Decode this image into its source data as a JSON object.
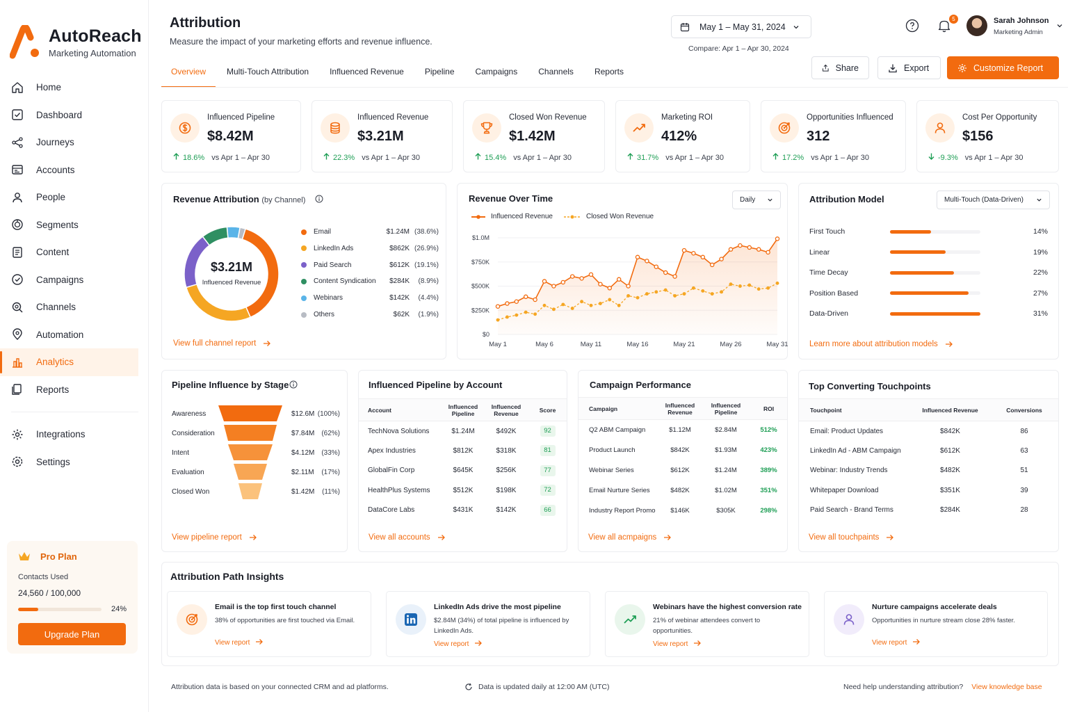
{
  "brand": {
    "name": "AutoReach",
    "tagline": "Marketing Automation",
    "accent": "#f26b0f"
  },
  "nav": [
    {
      "label": "Home",
      "icon": "home-icon"
    },
    {
      "label": "Dashboard",
      "icon": "dashboard-icon"
    },
    {
      "label": "Journeys",
      "icon": "journeys-icon"
    },
    {
      "label": "Accounts",
      "icon": "accounts-icon"
    },
    {
      "label": "People",
      "icon": "people-icon"
    },
    {
      "label": "Segments",
      "icon": "segments-icon"
    },
    {
      "label": "Content",
      "icon": "content-icon"
    },
    {
      "label": "Campaigns",
      "icon": "campaigns-icon"
    },
    {
      "label": "Channels",
      "icon": "channels-icon"
    },
    {
      "label": "Automation",
      "icon": "automation-icon"
    },
    {
      "label": "Analytics",
      "icon": "analytics-icon",
      "active": true
    },
    {
      "label": "Reports",
      "icon": "reports-icon"
    }
  ],
  "nav_bottom": [
    {
      "label": "Integrations",
      "icon": "integrations-icon"
    },
    {
      "label": "Settings",
      "icon": "settings-icon"
    }
  ],
  "plan": {
    "name": "Pro Plan",
    "contacts_label": "Contacts Used",
    "contacts": "24,560 / 100,000",
    "pct_label": "24%",
    "pct": 0.24,
    "button": "Upgrade Plan"
  },
  "header": {
    "title": "Attribution",
    "subtitle": "Measure the impact of your marketing efforts and revenue influence.",
    "date_range": "May 1 – May 31, 2024",
    "compare": "Compare: Apr 1 – Apr 30, 2024",
    "notification_count": "5",
    "user_name": "Sarah Johnson",
    "user_role": "Marketing Admin",
    "share": "Share",
    "export": "Export",
    "customize": "Customize Report"
  },
  "tabs": [
    "Overview",
    "Multi-Touch Attribution",
    "Influenced Revenue",
    "Pipeline",
    "Campaigns",
    "Channels",
    "Reports"
  ],
  "kpis": [
    {
      "label": "Influenced Pipeline",
      "value": "$8.42M",
      "delta": "18.6%",
      "direction": "up",
      "vs": "vs Apr 1 – Apr 30",
      "icon": "dollar-icon"
    },
    {
      "label": "Influenced Revenue",
      "value": "$3.21M",
      "delta": "22.3%",
      "direction": "up",
      "vs": "vs Apr 1 – Apr 30",
      "icon": "coins-icon"
    },
    {
      "label": "Closed Won Revenue",
      "value": "$1.42M",
      "delta": "15.4%",
      "direction": "up",
      "vs": "vs Apr 1 – Apr 30",
      "icon": "trophy-icon"
    },
    {
      "label": "Marketing ROI",
      "value": "412%",
      "delta": "31.7%",
      "direction": "up",
      "vs": "vs Apr 1 – Apr 30",
      "icon": "trend-icon"
    },
    {
      "label": "Opportunities Influenced",
      "value": "312",
      "delta": "17.2%",
      "direction": "up",
      "vs": "vs Apr 1 – Apr 30",
      "icon": "target-icon"
    },
    {
      "label": "Cost Per Opportunity",
      "value": "$156",
      "delta": "-9.3%",
      "direction": "down",
      "vs": "vs Apr 1 – Apr 30",
      "icon": "person-icon"
    }
  ],
  "revenue_attribution": {
    "title": "Revenue Attribution",
    "title_suffix": "(by Channel)",
    "center_value": "$3.21M",
    "center_label": "Influenced Revenue",
    "link": "View full channel report",
    "channels": [
      {
        "name": "Email",
        "value": "$1.24M",
        "pct": "(38.6%)",
        "share": 38.6,
        "color": "#f26b0f"
      },
      {
        "name": "LinkedIn Ads",
        "value": "$862K",
        "pct": "(26.9%)",
        "share": 26.9,
        "color": "#f5a623"
      },
      {
        "name": "Paid Search",
        "value": "$612K",
        "pct": "(19.1%)",
        "share": 19.1,
        "color": "#7b61c9"
      },
      {
        "name": "Content Syndication",
        "value": "$284K",
        "pct": "(8.9%)",
        "share": 8.9,
        "color": "#2f8f62"
      },
      {
        "name": "Webinars",
        "value": "$142K",
        "pct": "(4.4%)",
        "share": 4.4,
        "color": "#5ab4e8"
      },
      {
        "name": "Others",
        "value": "$62K",
        "pct": "(1.9%)",
        "share": 1.9,
        "color": "#b8bcc4"
      }
    ]
  },
  "revenue_over_time": {
    "title": "Revenue Over Time",
    "granularity": "Daily"
  },
  "chart_data": {
    "type": "line",
    "x": [
      "May 1",
      "May 2",
      "May 3",
      "May 4",
      "May 5",
      "May 6",
      "May 7",
      "May 8",
      "May 9",
      "May 10",
      "May 11",
      "May 12",
      "May 13",
      "May 14",
      "May 15",
      "May 16",
      "May 17",
      "May 18",
      "May 19",
      "May 20",
      "May 21",
      "May 22",
      "May 23",
      "May 24",
      "May 25",
      "May 26",
      "May 27",
      "May 28",
      "May 29",
      "May 30",
      "May 31"
    ],
    "xticks": [
      "May 1",
      "May 6",
      "May 11",
      "May 16",
      "May 21",
      "May 26",
      "May 31"
    ],
    "yticks": [
      "$0",
      "$250K",
      "$500K",
      "$750K",
      "$1.0M"
    ],
    "ylim": [
      0,
      1000000
    ],
    "series": [
      {
        "name": "Influenced Revenue",
        "color": "#f26b0f",
        "style": "solid",
        "values": [
          290000,
          320000,
          340000,
          390000,
          360000,
          550000,
          500000,
          540000,
          600000,
          580000,
          620000,
          520000,
          480000,
          570000,
          500000,
          800000,
          760000,
          700000,
          640000,
          600000,
          870000,
          840000,
          800000,
          720000,
          780000,
          880000,
          920000,
          900000,
          880000,
          850000,
          990000
        ]
      },
      {
        "name": "Closed Won Revenue",
        "color": "#f5a623",
        "style": "dashed",
        "values": [
          150000,
          180000,
          200000,
          230000,
          210000,
          300000,
          260000,
          310000,
          270000,
          340000,
          300000,
          320000,
          360000,
          300000,
          400000,
          380000,
          420000,
          440000,
          460000,
          400000,
          420000,
          480000,
          450000,
          420000,
          440000,
          520000,
          500000,
          510000,
          470000,
          480000,
          530000
        ]
      }
    ]
  },
  "attribution_model": {
    "title": "Attribution Model",
    "selected": "Multi-Touch (Data-Driven)",
    "link": "Learn more about attribution models",
    "rows": [
      {
        "name": "First Touch",
        "pct": "14%",
        "value": 0.14
      },
      {
        "name": "Linear",
        "pct": "19%",
        "value": 0.19
      },
      {
        "name": "Time Decay",
        "pct": "22%",
        "value": 0.22
      },
      {
        "name": "Position Based",
        "pct": "27%",
        "value": 0.27
      },
      {
        "name": "Data-Driven",
        "pct": "31%",
        "value": 0.31
      }
    ]
  },
  "pipeline_stage": {
    "title": "Pipeline Influence by Stage",
    "link": "View pipeline report",
    "rows": [
      {
        "name": "Awareness",
        "value": "$12.6M",
        "pct": "(100%)",
        "color": "#f26b0f"
      },
      {
        "name": "Consideration",
        "value": "$7.84M",
        "pct": "(62%)",
        "color": "#f47f22"
      },
      {
        "name": "Intent",
        "value": "$4.12M",
        "pct": "(33%)",
        "color": "#f6923a"
      },
      {
        "name": "Evaluation",
        "value": "$2.11M",
        "pct": "(17%)",
        "color": "#f8a654"
      },
      {
        "name": "Closed Won",
        "value": "$1.42M",
        "pct": "(11%)",
        "color": "#fbc27c"
      }
    ]
  },
  "pipeline_account": {
    "title": "Influenced Pipeline by Account",
    "link": "View all accounts",
    "headers": [
      "Account",
      "Influenced Pipeline",
      "Influenced Revenue",
      "Score"
    ],
    "rows": [
      {
        "account": "TechNova Solutions",
        "pipeline": "$1.24M",
        "revenue": "$492K",
        "score": "92"
      },
      {
        "account": "Apex Industries",
        "pipeline": "$812K",
        "revenue": "$318K",
        "score": "81"
      },
      {
        "account": "GlobalFin Corp",
        "pipeline": "$645K",
        "revenue": "$256K",
        "score": "77"
      },
      {
        "account": "HealthPlus Systems",
        "pipeline": "$512K",
        "revenue": "$198K",
        "score": "72"
      },
      {
        "account": "DataCore Labs",
        "pipeline": "$431K",
        "revenue": "$142K",
        "score": "66"
      }
    ]
  },
  "campaign_performance": {
    "title": "Campaign Performance",
    "link": "View all acmpaigns",
    "headers": [
      "Campaign",
      "Influenced Revenue",
      "Influenced Pipeline",
      "ROI"
    ],
    "rows": [
      {
        "campaign": "Q2 ABM Campaign",
        "revenue": "$1.12M",
        "pipeline": "$2.84M",
        "roi": "512%"
      },
      {
        "campaign": "Product Launch",
        "revenue": "$842K",
        "pipeline": "$1.93M",
        "roi": "423%"
      },
      {
        "campaign": "Webinar Series",
        "revenue": "$612K",
        "pipeline": "$1.24M",
        "roi": "389%"
      },
      {
        "campaign": "Email Nurture Series",
        "revenue": "$482K",
        "pipeline": "$1.02M",
        "roi": "351%"
      },
      {
        "campaign": "Industry Report Promo",
        "revenue": "$146K",
        "pipeline": "$305K",
        "roi": "298%"
      }
    ]
  },
  "touchpoints": {
    "title": "Top Converting Touchpoints",
    "link": "View all touchpaints",
    "headers": [
      "Touchpoint",
      "Influenced Revenue",
      "Conversions"
    ],
    "rows": [
      {
        "name": "Email: Product Updates",
        "revenue": "$842K",
        "conversions": "86"
      },
      {
        "name": "LinkedIn Ad - ABM Campaign",
        "revenue": "$612K",
        "conversions": "63"
      },
      {
        "name": "Webinar: Industry Trends",
        "revenue": "$482K",
        "conversions": "51"
      },
      {
        "name": "Whitepaper Download",
        "revenue": "$351K",
        "conversions": "39"
      },
      {
        "name": "Paid Search - Brand Terms",
        "revenue": "$284K",
        "conversions": "28"
      }
    ]
  },
  "insights": {
    "title": "Attribution Path Insights",
    "items": [
      {
        "title": "Email is the top first touch channel",
        "desc": "38% of opportunities are first touched via Email.",
        "link": "View report",
        "icon": "target-icon"
      },
      {
        "title": "LinkedIn Ads drive the most pipeline",
        "desc": "$2.84M (34%) of total pipeline is influenced by LinkedIn Ads.",
        "link": "View report",
        "icon": "linkedin-icon"
      },
      {
        "title": "Webinars have the highest conversion rate",
        "desc": "21% of webinar attendees convert to opportunities.",
        "link": "View report",
        "icon": "trend-icon"
      },
      {
        "title": "Nurture campaigns accelerate deals",
        "desc": "Opportunities in nurture stream close 28% faster.",
        "link": "View report",
        "icon": "person-icon"
      }
    ]
  },
  "footer": {
    "note": "Attribution data is based on your connected CRM and ad platforms.",
    "update": "Data is updated daily at 12:00 AM (UTC)",
    "help": "Need help understanding attribution?",
    "kb_link": "View knowledge base"
  }
}
